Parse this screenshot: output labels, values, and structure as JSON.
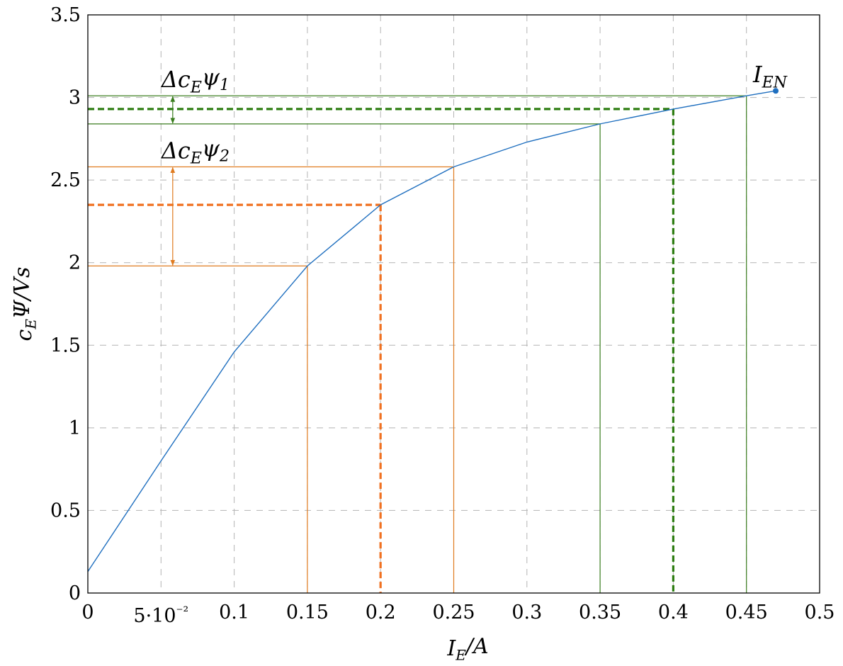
{
  "chart_data": {
    "type": "line",
    "xlabel": "I_E/A",
    "ylabel": "c_EΨ/Vs",
    "xlim": [
      0,
      0.5
    ],
    "ylim": [
      0,
      3.5
    ],
    "grid": true,
    "x_ticks": [
      {
        "value": 0,
        "label": "0"
      },
      {
        "value": 0.05,
        "label": "5·10⁻²"
      },
      {
        "value": 0.1,
        "label": "0.1"
      },
      {
        "value": 0.15,
        "label": "0.15"
      },
      {
        "value": 0.2,
        "label": "0.2"
      },
      {
        "value": 0.25,
        "label": "0.25"
      },
      {
        "value": 0.3,
        "label": "0.3"
      },
      {
        "value": 0.35,
        "label": "0.35"
      },
      {
        "value": 0.4,
        "label": "0.4"
      },
      {
        "value": 0.45,
        "label": "0.45"
      },
      {
        "value": 0.5,
        "label": "0.5"
      }
    ],
    "y_ticks": [
      {
        "value": 0,
        "label": "0"
      },
      {
        "value": 0.5,
        "label": "0.5"
      },
      {
        "value": 1,
        "label": "1"
      },
      {
        "value": 1.5,
        "label": "1.5"
      },
      {
        "value": 2,
        "label": "2"
      },
      {
        "value": 2.5,
        "label": "2.5"
      },
      {
        "value": 3,
        "label": "3"
      },
      {
        "value": 3.5,
        "label": "3.5"
      }
    ],
    "series": [
      {
        "color": "#1f6fbf",
        "x": [
          0,
          0.05,
          0.1,
          0.15,
          0.2,
          0.25,
          0.3,
          0.35,
          0.4,
          0.45,
          0.47
        ],
        "y": [
          0.13,
          0.8,
          1.46,
          1.98,
          2.35,
          2.58,
          2.73,
          2.84,
          2.93,
          3.01,
          3.04
        ]
      }
    ],
    "endpoint": {
      "x": 0.47,
      "y": 3.04,
      "label": "I_EN",
      "color": "#1f6fbf"
    },
    "annotations": [
      {
        "label": "Δc_Eψ_1",
        "color": "#3a7d1e",
        "dashed_color": "#2e7d12",
        "x_lo": 0.35,
        "x_mid": 0.4,
        "x_hi": 0.45,
        "y_lo": 2.84,
        "y_mid": 2.93,
        "y_hi": 3.01,
        "arrow_x": 0.058
      },
      {
        "label": "Δc_Eψ_2",
        "color": "#e07b1f",
        "dashed_color": "#f07020",
        "x_lo": 0.15,
        "x_mid": 0.2,
        "x_hi": 0.25,
        "y_lo": 1.98,
        "y_mid": 2.35,
        "y_hi": 2.58,
        "arrow_x": 0.058
      }
    ]
  }
}
